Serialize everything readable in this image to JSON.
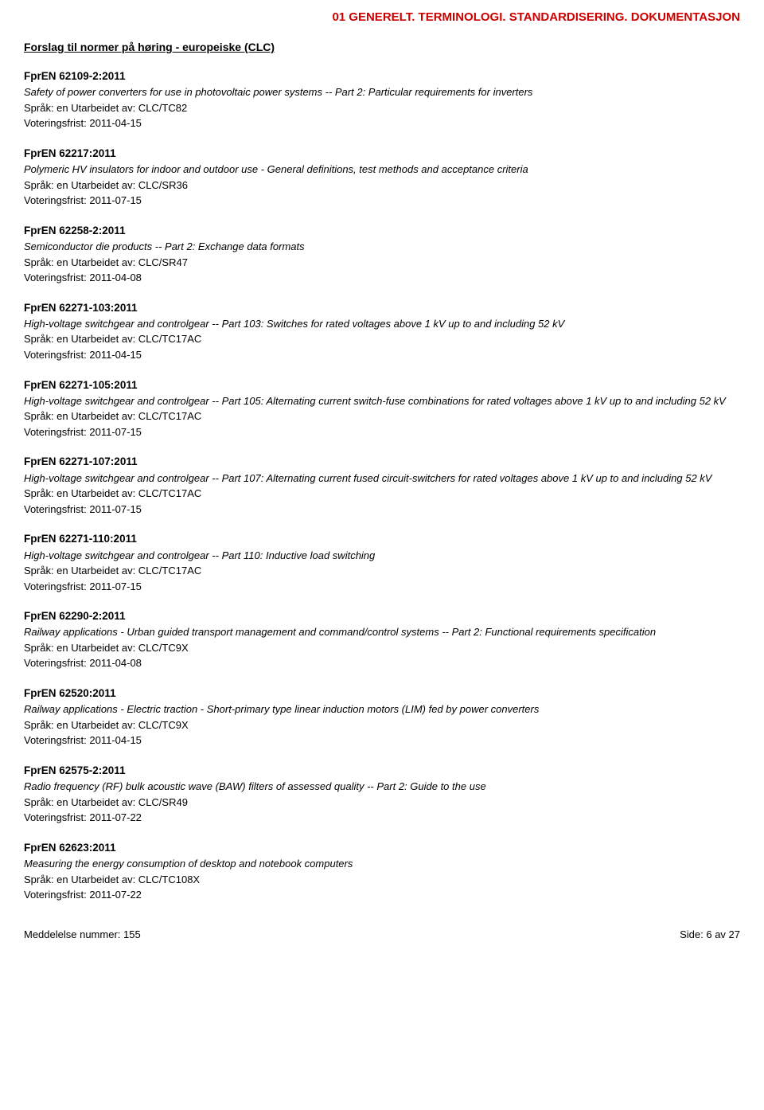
{
  "header": {
    "title": "01  GENERELT. TERMINOLOGI. STANDARDISERING. DOKUMENTASJON"
  },
  "section": {
    "title": "Forslag til normer på høring - europeiske (CLC)"
  },
  "labels": {
    "language_prefix": "Språk: ",
    "authored_prefix": "Utarbeidet av: ",
    "vote_prefix": "Voteringsfrist: "
  },
  "entries": [
    {
      "code": "FprEN 62109-2:2011",
      "desc": "Safety of power converters for use in photovoltaic power systems -- Part 2: Particular requirements for inverters",
      "language": "en",
      "authored": "CLC/TC82",
      "vote": "2011-04-15"
    },
    {
      "code": "FprEN 62217:2011",
      "desc": "Polymeric HV insulators for indoor and outdoor use - General definitions, test methods and acceptance criteria",
      "language": "en",
      "authored": "CLC/SR36",
      "vote": "2011-07-15"
    },
    {
      "code": "FprEN 62258-2:2011",
      "desc": "Semiconductor die products -- Part 2: Exchange data formats",
      "language": "en",
      "authored": "CLC/SR47",
      "vote": "2011-04-08"
    },
    {
      "code": "FprEN 62271-103:2011",
      "desc": "High-voltage switchgear and controlgear -- Part 103: Switches for rated voltages above 1 kV up to and including 52 kV",
      "language": "en",
      "authored": "CLC/TC17AC",
      "vote": "2011-04-15"
    },
    {
      "code": "FprEN 62271-105:2011",
      "desc": "High-voltage switchgear and controlgear -- Part 105: Alternating current switch-fuse combinations for rated voltages above 1 kV up to and including 52 kV",
      "language": "en",
      "authored": "CLC/TC17AC",
      "vote": "2011-07-15"
    },
    {
      "code": "FprEN 62271-107:2011",
      "desc": "High-voltage switchgear and controlgear -- Part 107: Alternating current fused circuit-switchers for rated voltages above 1 kV up to and including 52 kV",
      "language": "en",
      "authored": "CLC/TC17AC",
      "vote": "2011-07-15"
    },
    {
      "code": "FprEN 62271-110:2011",
      "desc": "High-voltage switchgear and controlgear -- Part 110: Inductive load switching",
      "language": "en",
      "authored": "CLC/TC17AC",
      "vote": "2011-07-15"
    },
    {
      "code": "FprEN 62290-2:2011",
      "desc": "Railway applications - Urban guided transport management and command/control systems -- Part 2: Functional requirements specification",
      "language": "en",
      "authored": "CLC/TC9X",
      "vote": "2011-04-08"
    },
    {
      "code": "FprEN 62520:2011",
      "desc": "Railway applications - Electric traction - Short-primary type linear induction motors (LIM) fed by power converters",
      "language": "en",
      "authored": "CLC/TC9X",
      "vote": "2011-04-15"
    },
    {
      "code": "FprEN 62575-2:2011",
      "desc": "Radio frequency (RF) bulk acoustic wave (BAW) filters of assessed quality -- Part 2: Guide to the use",
      "language": "en",
      "authored": "CLC/SR49",
      "vote": "2011-07-22"
    },
    {
      "code": "FprEN 62623:2011",
      "desc": "Measuring the energy consumption of desktop and notebook computers",
      "language": "en",
      "authored": "CLC/TC108X",
      "vote": "2011-07-22"
    }
  ],
  "footer": {
    "left": "Meddelelse nummer: 155",
    "right": "Side: 6 av 27"
  }
}
